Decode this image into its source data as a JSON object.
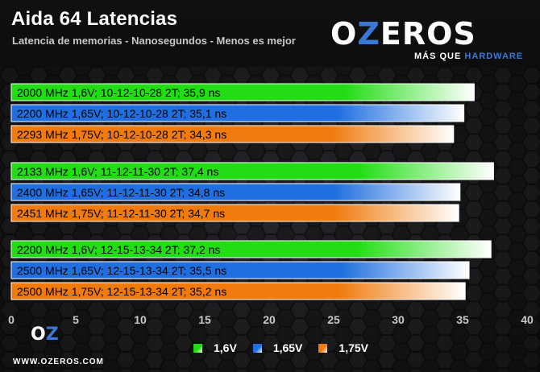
{
  "header": {
    "title": "Aida 64 Latencias",
    "subtitle": "Latencia de memorias - Nanosegundos - Menos es mejor"
  },
  "branding": {
    "logo_text_left": "O",
    "logo_text_z": "Z",
    "logo_text_right": "EROS",
    "tagline_left": "MÁS QUE ",
    "tagline_right": "HARDWARE",
    "site_url": "WWW.OZEROS.COM"
  },
  "colors": {
    "series_1_6V": "#22dd14",
    "series_1_65V": "#1f6fe0",
    "series_1_75V": "#f07a0c",
    "brand_blue": "#3a78d8",
    "axis_text": "#c8c8c8"
  },
  "chart_data": {
    "type": "bar",
    "orientation": "horizontal",
    "title": "Aida 64 Latencias",
    "subtitle": "Latencia de memorias - Nanosegundos - Menos es mejor",
    "xlabel": "",
    "ylabel": "",
    "xlim": [
      0,
      40
    ],
    "xticks": [
      0,
      5,
      10,
      15,
      20,
      25,
      30,
      35,
      40
    ],
    "grid": false,
    "legend_position": "bottom",
    "series": [
      {
        "name": "1,6V",
        "color_key": "series_1_6V"
      },
      {
        "name": "1,65V",
        "color_key": "series_1_65V"
      },
      {
        "name": "1,75V",
        "color_key": "series_1_75V"
      }
    ],
    "groups": [
      {
        "bars": [
          {
            "label": "2000 MHz  1,6V; 10-12-10-28 2T; 35,9 ns",
            "value": 35.9,
            "series": 0
          },
          {
            "label": "2200 MHz  1,65V; 10-12-10-28 2T; 35,1 ns",
            "value": 35.1,
            "series": 1
          },
          {
            "label": "2293 MHz  1,75V; 10-12-10-28 2T; 34,3 ns",
            "value": 34.3,
            "series": 2
          }
        ]
      },
      {
        "bars": [
          {
            "label": "2133 MHz  1,6V; 11-12-11-30 2T; 37,4 ns",
            "value": 37.4,
            "series": 0
          },
          {
            "label": "2400 MHz  1,65V; 11-12-11-30 2T; 34,8 ns",
            "value": 34.8,
            "series": 1
          },
          {
            "label": "2451 MHz  1,75V; 11-12-11-30 2T; 34,7 ns",
            "value": 34.7,
            "series": 2
          }
        ]
      },
      {
        "bars": [
          {
            "label": "2200 MHz  1,6V; 12-15-13-34 2T; 37,2 ns",
            "value": 37.2,
            "series": 0
          },
          {
            "label": "2500 MHz  1,65V; 12-15-13-34 2T; 35,5 ns",
            "value": 35.5,
            "series": 1
          },
          {
            "label": "2500 MHz  1,75V; 12-15-13-34 2T; 35,2 ns",
            "value": 35.2,
            "series": 2
          }
        ]
      }
    ]
  }
}
